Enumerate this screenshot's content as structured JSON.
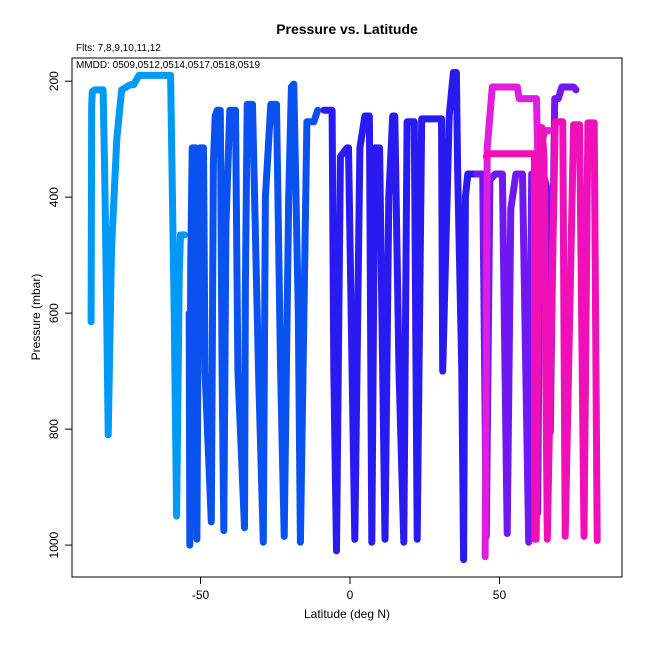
{
  "chart_data": {
    "type": "line",
    "title": "Pressure vs. Latitude",
    "annotations": [
      "Flts: 7,8,9,10,11,12",
      "MMDD: 0509,0512,0514,0517,0518,0519"
    ],
    "xlabel": "Latitude (deg N)",
    "ylabel": "Pressure (mbar)",
    "xlim": [
      -93,
      91
    ],
    "ylim": [
      1055,
      160
    ],
    "y_reversed": true,
    "x_ticks": [
      -50,
      0,
      50
    ],
    "y_ticks": [
      200,
      400,
      600,
      800,
      1000
    ],
    "grid": false,
    "series": [
      {
        "color": "#0099f5",
        "x": [
          -86.6,
          -86.4,
          -86.2,
          -85.4,
          -82.6,
          -82.0,
          -81.4,
          -80.9,
          -79.8,
          -78.0,
          -76.4,
          -73.5,
          -72.4,
          -70.6,
          -60.0,
          -58.8,
          -58.0,
          -57.1,
          -56.7,
          -55.4
        ],
        "y": [
          615,
          240,
          218,
          215,
          215,
          380,
          600,
          810,
          490,
          300,
          215,
          206,
          206,
          190,
          190,
          600,
          950,
          530,
          465,
          465
        ]
      },
      {
        "color": "#0a52f0",
        "x": [
          -53.8,
          -53.6,
          -53.3,
          -52.8,
          -51.6,
          -51.2,
          -50.6,
          -50.2,
          -49.0,
          -48.5,
          -46.4,
          -45.7,
          -45.1,
          -44.4,
          -43.4,
          -42.8,
          -42.2,
          -41.5,
          -40.2,
          -38.3,
          -37.5,
          -35.3,
          -35.0,
          -34.4,
          -33.4,
          -32.6,
          -30.6,
          -29.0,
          -28.3,
          -26.5,
          -24.6,
          -23.2,
          -22.0,
          -20.5,
          -19.6,
          -18.8,
          -17.3,
          -16.6,
          -14.4,
          -13.3,
          -12.1,
          -10.8
        ],
        "y": [
          600,
          1000,
          520,
          315,
          315,
          990,
          420,
          315,
          315,
          700,
          960,
          340,
          260,
          250,
          250,
          700,
          975,
          450,
          250,
          250,
          700,
          970,
          550,
          240,
          240,
          240,
          700,
          995,
          400,
          240,
          240,
          700,
          985,
          400,
          210,
          205,
          600,
          995,
          270,
          270,
          270,
          250
        ]
      },
      {
        "color": "#2a1af2",
        "x": [
          -8.7,
          -6.0,
          -5.4,
          -4.5,
          -3.2,
          -1.0,
          -0.5,
          1.6,
          3.3,
          5.0,
          6.5,
          7.3,
          8.3,
          9.9,
          11.7,
          13.0,
          14.3,
          15.0,
          16.4,
          18.0,
          19.1,
          20.4,
          21.5,
          22.5,
          24.0,
          30.6,
          31.0,
          33.2,
          34.6,
          35.6,
          36.0,
          37.4,
          38.0,
          38.6,
          39.4,
          40.0,
          41.5,
          42.2
        ],
        "y": [
          250,
          250,
          700,
          1010,
          330,
          315,
          315,
          990,
          315,
          260,
          260,
          995,
          315,
          315,
          990,
          400,
          260,
          260,
          700,
          995,
          270,
          270,
          270,
          990,
          265,
          265,
          700,
          260,
          185,
          185,
          350,
          700,
          1025,
          400,
          360,
          360,
          360,
          360
        ]
      },
      {
        "color": "#7018f2",
        "x": [
          42.5,
          44.4,
          45.6,
          46.8,
          48.6,
          51.0,
          52.6,
          53.8,
          55.5,
          56.0,
          57.7,
          59.8,
          60.8,
          61.8,
          62.8,
          63.4,
          64.6,
          65.7,
          67.0,
          68.5,
          69.7,
          70.9,
          71.6,
          74.8,
          75.6
        ],
        "y": [
          360,
          360,
          985,
          370,
          360,
          360,
          980,
          420,
          360,
          360,
          360,
          995,
          360,
          360,
          945,
          500,
          360,
          380,
          805,
          230,
          230,
          210,
          210,
          210,
          215
        ]
      },
      {
        "color": "#e11ee0",
        "x": [
          45.2,
          45.6,
          45.9,
          47.6,
          51.5,
          56.0,
          56.6,
          62.4,
          63.1,
          64.4,
          65.0,
          65.9,
          66.5
        ],
        "y": [
          1020,
          680,
          315,
          210,
          210,
          210,
          230,
          230,
          400,
          300,
          290,
          285,
          285
        ]
      },
      {
        "color": "#f010b8",
        "x": [
          45.6,
          46.2,
          50.0,
          61.7,
          61.8,
          62.3,
          62.9,
          63.8,
          64.2,
          64.9,
          66.0,
          68.7,
          71.2,
          72.0,
          74.8,
          76.8,
          78.3,
          79.6,
          81.7,
          82.7
        ],
        "y": [
          330,
          325,
          325,
          325,
          990,
          990,
          600,
          280,
          280,
          330,
          990,
          270,
          270,
          985,
          275,
          275,
          985,
          272,
          272,
          992
        ]
      }
    ]
  }
}
